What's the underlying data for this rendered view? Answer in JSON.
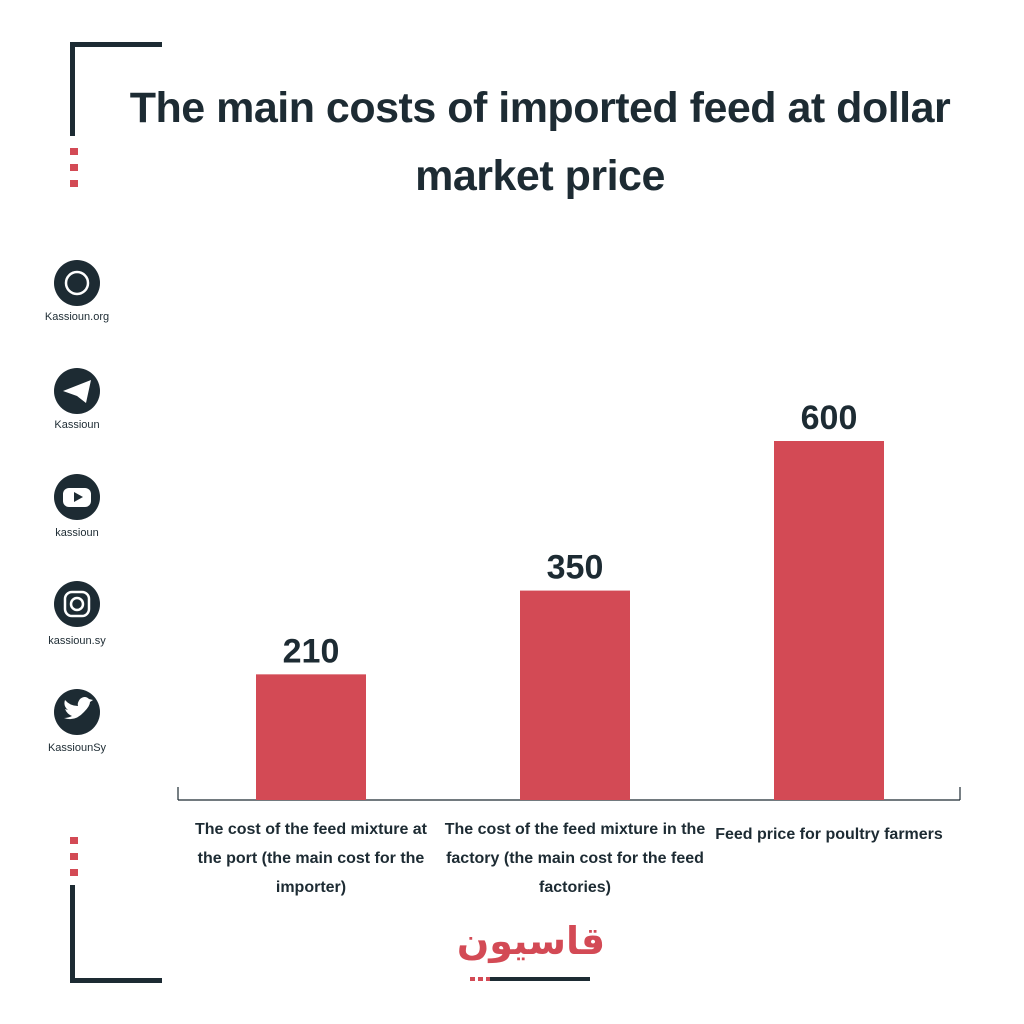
{
  "chart_data": {
    "type": "bar",
    "title": "The main costs of imported feed at dollar market price",
    "categories": [
      "The cost of the feed mixture at the port (the main cost for the importer)",
      "The cost of the feed mixture in the factory (the main cost for the feed factories)",
      "Feed price for poultry farmers"
    ],
    "values": [
      210,
      350,
      600
    ],
    "color": "#d34a55"
  },
  "sidebar": [
    "Kassioun.org",
    "Kassioun",
    "kassioun",
    "kassioun.sy",
    "KassiounSy"
  ],
  "logo": "قاسيون"
}
